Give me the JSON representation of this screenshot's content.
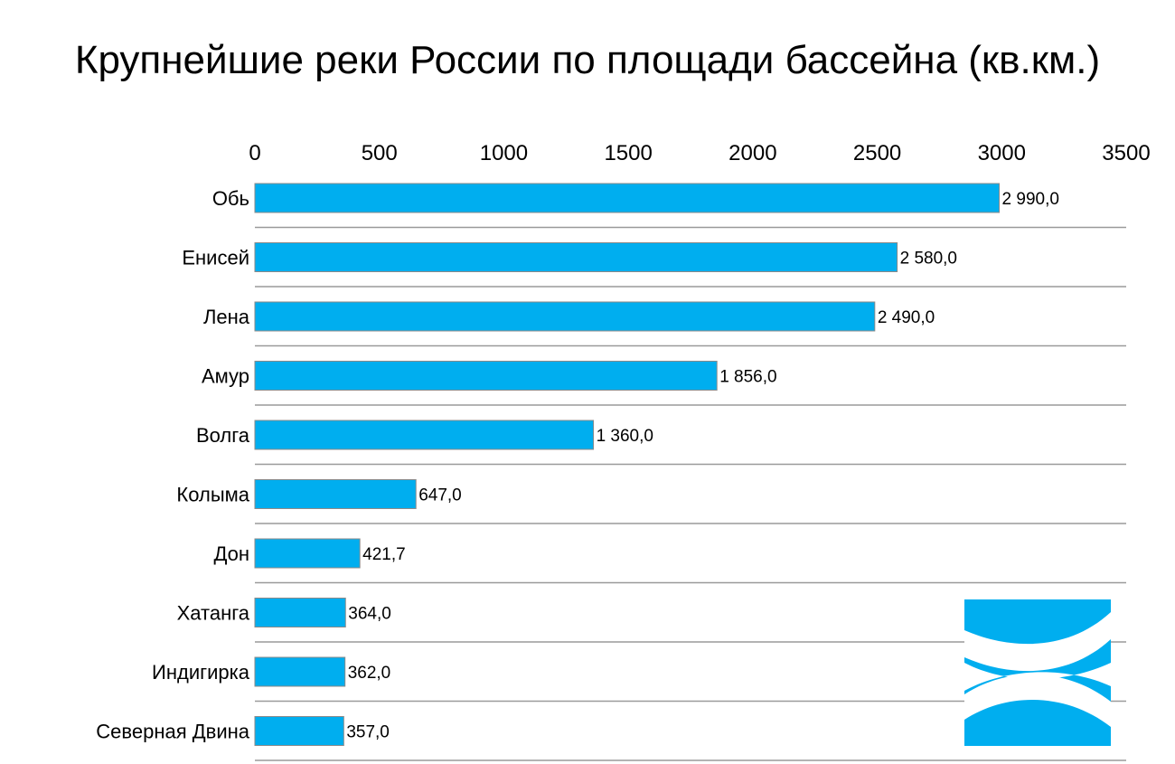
{
  "chart_data": {
    "type": "bar",
    "orientation": "horizontal",
    "title": "Крупнейшие реки России по площади бассейна (кв.км.)",
    "categories": [
      "Обь",
      "Енисей",
      "Лена",
      "Амур",
      "Волга",
      "Колыма",
      "Дон",
      "Хатанга",
      "Индигирка",
      "Северная Двина"
    ],
    "values": [
      2990.0,
      2580.0,
      2490.0,
      1856.0,
      1360.0,
      647.0,
      421.7,
      364.0,
      362.0,
      357.0
    ],
    "value_labels": [
      "2 990,0",
      "2 580,0",
      "2 490,0",
      "1 856,0",
      "1 360,0",
      "647,0",
      "421,7",
      "364,0",
      "362,0",
      "357,0"
    ],
    "xlim": [
      0,
      3500
    ],
    "x_ticks": [
      0,
      500,
      1000,
      1500,
      2000,
      2500,
      3000,
      3500
    ],
    "x_tick_labels": [
      "0",
      "500",
      "1000",
      "1500",
      "2000",
      "2500",
      "3000",
      "3500"
    ],
    "x_axis_position": "top",
    "xlabel": "",
    "ylabel": "",
    "bar_color": "#00AEEF",
    "grid": "horizontal separators"
  },
  "logo": {
    "name": "river-waves-logo",
    "color": "#00AEEF"
  }
}
